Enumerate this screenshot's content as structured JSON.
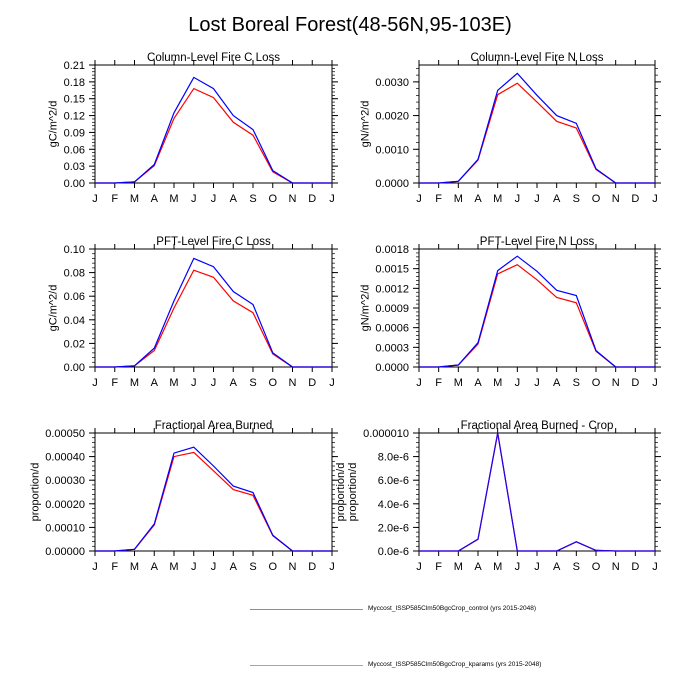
{
  "figure_title": "Lost Boreal Forest(48-56N,95-103E)",
  "legend": [
    {
      "label": "Myccost_ISSP585Clm50BgcCrop_control (yrs 2015-2048)",
      "color": "#7f7fff"
    },
    {
      "label": "Myccost_ISSP585Clm50BgcCrop_kparams (yrs 2015-2048)",
      "color": "#ff7f7f"
    }
  ],
  "series_colors": {
    "control": "#0000ff",
    "kparams": "#ff0000"
  },
  "chart_data": [
    {
      "type": "line",
      "title": "Column-Level Fire C Loss",
      "ylabel": "gC/m^2/d",
      "xlabel": "",
      "categories": [
        "J",
        "F",
        "M",
        "A",
        "M",
        "J",
        "J",
        "A",
        "S",
        "O",
        "N",
        "D",
        "J"
      ],
      "ylim": [
        0,
        0.21
      ],
      "yticks": [
        "0.00",
        "0.03",
        "0.06",
        "0.09",
        "0.12",
        "0.15",
        "0.18",
        "0.21"
      ],
      "ytick_values": [
        0,
        0.03,
        0.06,
        0.09,
        0.12,
        0.15,
        0.18,
        0.21
      ],
      "right_label": false,
      "series": [
        {
          "name": "control",
          "values": [
            0,
            0,
            0.002,
            0.033,
            0.125,
            0.188,
            0.168,
            0.12,
            0.095,
            0.022,
            0,
            0,
            0
          ]
        },
        {
          "name": "kparams",
          "values": [
            0,
            0,
            0.002,
            0.031,
            0.115,
            0.168,
            0.152,
            0.108,
            0.085,
            0.02,
            0,
            0,
            0
          ]
        }
      ]
    },
    {
      "type": "line",
      "title": "Column-Level Fire N Loss",
      "ylabel": "gN/m^2/d",
      "xlabel": "",
      "categories": [
        "J",
        "F",
        "M",
        "A",
        "M",
        "J",
        "J",
        "A",
        "S",
        "O",
        "N",
        "D",
        "J"
      ],
      "ylim": [
        0,
        0.0035
      ],
      "yticks": [
        "0.0000",
        "0.0010",
        "0.0020",
        "0.0030"
      ],
      "ytick_values": [
        0,
        0.001,
        0.002,
        0.003
      ],
      "right_label": false,
      "series": [
        {
          "name": "control",
          "values": [
            0,
            0,
            5e-05,
            0.0007,
            0.00275,
            0.00325,
            0.0026,
            0.002,
            0.00177,
            0.00042,
            0,
            0,
            0
          ]
        },
        {
          "name": "kparams",
          "values": [
            0,
            0,
            5e-05,
            0.00068,
            0.00262,
            0.00296,
            0.0024,
            0.00183,
            0.00163,
            0.0004,
            0,
            0,
            0
          ]
        }
      ]
    },
    {
      "type": "line",
      "title": "PFT-Level Fire C Loss",
      "ylabel": "gC/m^2/d",
      "xlabel": "",
      "categories": [
        "J",
        "F",
        "M",
        "A",
        "M",
        "J",
        "J",
        "A",
        "S",
        "O",
        "N",
        "D",
        "J"
      ],
      "ylim": [
        0,
        0.1
      ],
      "yticks": [
        "0.00",
        "0.02",
        "0.04",
        "0.06",
        "0.08",
        "0.10"
      ],
      "ytick_values": [
        0,
        0.02,
        0.04,
        0.06,
        0.08,
        0.1
      ],
      "right_label": false,
      "series": [
        {
          "name": "control",
          "values": [
            0,
            0,
            0.001,
            0.016,
            0.056,
            0.092,
            0.085,
            0.064,
            0.053,
            0.012,
            0,
            0,
            0
          ]
        },
        {
          "name": "kparams",
          "values": [
            0,
            0,
            0.001,
            0.014,
            0.05,
            0.082,
            0.076,
            0.056,
            0.046,
            0.011,
            0,
            0,
            0
          ]
        }
      ]
    },
    {
      "type": "line",
      "title": "PFT-Level Fire N Loss",
      "ylabel": "gN/m^2/d",
      "xlabel": "",
      "categories": [
        "J",
        "F",
        "M",
        "A",
        "M",
        "J",
        "J",
        "A",
        "S",
        "O",
        "N",
        "D",
        "J"
      ],
      "ylim": [
        0,
        0.0018
      ],
      "yticks": [
        "0.0000",
        "0.0003",
        "0.0006",
        "0.0009",
        "0.0012",
        "0.0015",
        "0.0018"
      ],
      "ytick_values": [
        0,
        0.0003,
        0.0006,
        0.0009,
        0.0012,
        0.0015,
        0.0018
      ],
      "right_label": false,
      "series": [
        {
          "name": "control",
          "values": [
            0,
            0,
            3e-05,
            0.00037,
            0.00147,
            0.00169,
            0.00146,
            0.00117,
            0.00109,
            0.00025,
            0,
            0,
            0
          ]
        },
        {
          "name": "kparams",
          "values": [
            0,
            0,
            3e-05,
            0.00035,
            0.00142,
            0.00156,
            0.00133,
            0.00106,
            0.00098,
            0.00024,
            0,
            0,
            0
          ]
        }
      ]
    },
    {
      "type": "line",
      "title": "Fractional Area Burned",
      "ylabel": "proportion/d",
      "xlabel": "",
      "categories": [
        "J",
        "F",
        "M",
        "A",
        "M",
        "J",
        "J",
        "A",
        "S",
        "O",
        "N",
        "D",
        "J"
      ],
      "ylim": [
        0,
        0.0005
      ],
      "yticks": [
        "0.00000",
        "0.00010",
        "0.00020",
        "0.00030",
        "0.00040",
        "0.00050"
      ],
      "ytick_values": [
        0,
        0.0001,
        0.0002,
        0.0003,
        0.0004,
        0.0005
      ],
      "right_label": true,
      "series": [
        {
          "name": "control",
          "values": [
            0,
            0,
            7e-06,
            0.000115,
            0.000415,
            0.00044,
            0.00036,
            0.000275,
            0.000248,
            6.7e-05,
            0,
            0,
            0
          ]
        },
        {
          "name": "kparams",
          "values": [
            0,
            0,
            7e-06,
            0.00011,
            0.0004,
            0.000418,
            0.00034,
            0.00026,
            0.000236,
            6.5e-05,
            0,
            0,
            0
          ]
        }
      ]
    },
    {
      "type": "line",
      "title": "Fractional Area Burned - Crop",
      "ylabel": "proportion/d",
      "xlabel": "",
      "categories": [
        "J",
        "F",
        "M",
        "A",
        "M",
        "J",
        "J",
        "A",
        "S",
        "O",
        "N",
        "D",
        "J"
      ],
      "ylim": [
        0,
        1e-05
      ],
      "yticks": [
        "0.0e-6",
        "2.0e-6",
        "4.0e-6",
        "6.0e-6",
        "8.0e-6",
        "0.000010"
      ],
      "ytick_values": [
        0,
        2e-06,
        4e-06,
        6e-06,
        8e-06,
        1e-05
      ],
      "right_label": false,
      "series": [
        {
          "name": "control",
          "values": [
            0,
            0,
            0,
            1e-06,
            1e-05,
            0,
            0,
            0,
            7.8e-07,
            5e-08,
            0,
            0,
            0
          ]
        },
        {
          "name": "kparams",
          "values": [
            0,
            0,
            0,
            1e-06,
            1e-05,
            0,
            0,
            0,
            7.8e-07,
            5e-08,
            0,
            0,
            0
          ]
        }
      ]
    }
  ]
}
